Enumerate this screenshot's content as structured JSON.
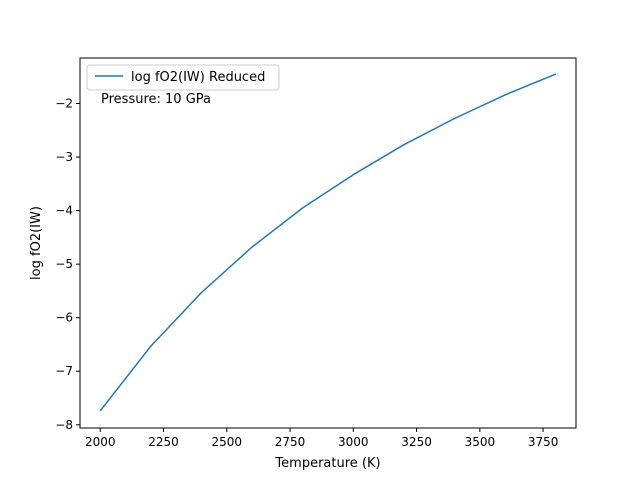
{
  "chart_data": {
    "type": "line",
    "title": "",
    "xlabel": "Temperature (K)",
    "ylabel": "log fO2(IW)",
    "xlim": [
      1920,
      3880
    ],
    "ylim": [
      -8.06,
      -1.15
    ],
    "xticks": [
      2000,
      2250,
      2500,
      2750,
      3000,
      3250,
      3500,
      3750
    ],
    "xtick_labels": [
      "2000",
      "2250",
      "2500",
      "2750",
      "3000",
      "3250",
      "3500",
      "3750"
    ],
    "yticks": [
      -8,
      -7,
      -6,
      -5,
      -4,
      -3,
      -2
    ],
    "ytick_labels": [
      "−8",
      "−7",
      "−6",
      "−5",
      "−4",
      "−3",
      "−2"
    ],
    "grid": false,
    "legend_position": "top-left",
    "annotation": "Pressure: 10 GPa",
    "series": [
      {
        "name": "log fO2(IW) Reduced",
        "color": "#1f77b4",
        "x": [
          2000,
          2200,
          2400,
          2600,
          2800,
          3000,
          3200,
          3400,
          3600,
          3800
        ],
        "y": [
          -7.74,
          -6.53,
          -5.53,
          -4.68,
          -3.95,
          -3.33,
          -2.77,
          -2.28,
          -1.84,
          -1.45
        ]
      }
    ]
  }
}
